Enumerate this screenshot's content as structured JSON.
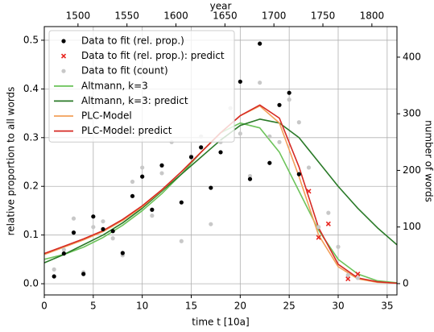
{
  "chart_data": {
    "type": "mixed",
    "xlabel": "time t [10a]",
    "ylabel": "relative proportion to all words",
    "y2label": "number of words",
    "x2label": "year",
    "xlim": [
      0,
      36
    ],
    "xticks": [
      0,
      5,
      10,
      15,
      20,
      25,
      30,
      35
    ],
    "x2lim": [
      1465.6,
      1825.6
    ],
    "x2ticks": [
      1500,
      1550,
      1600,
      1650,
      1700,
      1750,
      1800
    ],
    "ylim": [
      -0.023,
      0.528
    ],
    "yticks": [
      {
        "value": 0,
        "label": "0.0"
      },
      0.1,
      0.2,
      0.3,
      0.4,
      0.5
    ],
    "y2lim": [
      -20,
      454
    ],
    "y2ticks": [
      0,
      100,
      200,
      300,
      400
    ],
    "grid": true,
    "legend": "upper left",
    "series": [
      {
        "name": "Data to fit (rel. prop.)",
        "type": "scatter",
        "marker": "dot",
        "color": "#000000",
        "x": [
          1,
          2,
          3,
          4,
          5,
          6,
          7,
          8,
          9,
          10,
          11,
          12,
          14,
          15,
          16,
          17,
          18,
          20,
          21,
          22,
          23,
          24,
          25,
          26
        ],
        "values": [
          0.015,
          0.062,
          0.105,
          0.02,
          0.138,
          0.112,
          0.108,
          0.063,
          0.18,
          0.22,
          0.152,
          0.243,
          0.167,
          0.26,
          0.28,
          0.197,
          0.27,
          0.415,
          0.215,
          0.493,
          0.248,
          0.367,
          0.392,
          0.225
        ]
      },
      {
        "name": "Data to fit (rel. prop.): predict",
        "type": "scatter",
        "marker": "x",
        "color": "#e8251f",
        "x": [
          27,
          28,
          29,
          31,
          32
        ],
        "values": [
          0.19,
          0.095,
          0.123,
          0.01,
          0.02
        ]
      },
      {
        "name": "Data to fit (count)",
        "type": "scatter",
        "marker": "dot",
        "color": "#c8c8c8",
        "axis": "y2",
        "x": [
          1,
          2,
          3,
          4,
          5,
          6,
          7,
          8,
          9,
          10,
          11,
          12,
          13,
          14,
          15,
          16,
          17,
          18,
          19,
          20,
          21,
          22,
          23,
          24,
          25,
          26,
          27,
          28,
          29,
          30,
          31,
          32
        ],
        "values": [
          25,
          60,
          115,
          20,
          100,
          110,
          80,
          50,
          180,
          205,
          120,
          195,
          250,
          75,
          225,
          260,
          105,
          250,
          310,
          265,
          190,
          355,
          260,
          250,
          325,
          285,
          205,
          100,
          125,
          65,
          15,
          10
        ]
      },
      {
        "name": "Altmann, k=3",
        "type": "line",
        "color": "#6cc35a",
        "x": [
          0,
          2,
          4,
          6,
          8,
          10,
          12,
          14,
          16,
          18,
          20,
          22,
          24,
          26,
          28,
          30,
          32,
          34,
          36
        ],
        "values": [
          0.05,
          0.06,
          0.075,
          0.095,
          0.12,
          0.15,
          0.185,
          0.225,
          0.27,
          0.31,
          0.33,
          0.32,
          0.27,
          0.19,
          0.11,
          0.05,
          0.02,
          0.006,
          0.002
        ]
      },
      {
        "name": "Altmann, k=3: predict",
        "type": "line",
        "color": "#2a7a28",
        "x": [
          0,
          2,
          4,
          6,
          8,
          10,
          12,
          14,
          16,
          18,
          20,
          22,
          24,
          26,
          28,
          30,
          32,
          34,
          36
        ],
        "values": [
          0.043,
          0.06,
          0.08,
          0.1,
          0.125,
          0.155,
          0.19,
          0.225,
          0.26,
          0.295,
          0.325,
          0.338,
          0.33,
          0.3,
          0.25,
          0.2,
          0.155,
          0.115,
          0.08
        ]
      },
      {
        "name": "PLC-Model",
        "type": "line",
        "color": "#f2a05a",
        "x": [
          0,
          2,
          4,
          6,
          8,
          10,
          12,
          14,
          16,
          18,
          20,
          22,
          24,
          26,
          28,
          30,
          32,
          34,
          36
        ],
        "values": [
          0.06,
          0.075,
          0.09,
          0.107,
          0.13,
          0.158,
          0.192,
          0.23,
          0.27,
          0.31,
          0.345,
          0.365,
          0.33,
          0.22,
          0.1,
          0.035,
          0.01,
          0.003,
          0.001
        ]
      },
      {
        "name": "PLC-Model: predict",
        "type": "line",
        "color": "#d62a24",
        "x": [
          0,
          2,
          4,
          6,
          8,
          10,
          12,
          14,
          16,
          18,
          20,
          22,
          24,
          26,
          28,
          30,
          32,
          34,
          36
        ],
        "values": [
          0.062,
          0.077,
          0.092,
          0.109,
          0.132,
          0.16,
          0.193,
          0.23,
          0.27,
          0.31,
          0.345,
          0.367,
          0.34,
          0.24,
          0.115,
          0.04,
          0.012,
          0.004,
          0.001
        ]
      }
    ]
  }
}
